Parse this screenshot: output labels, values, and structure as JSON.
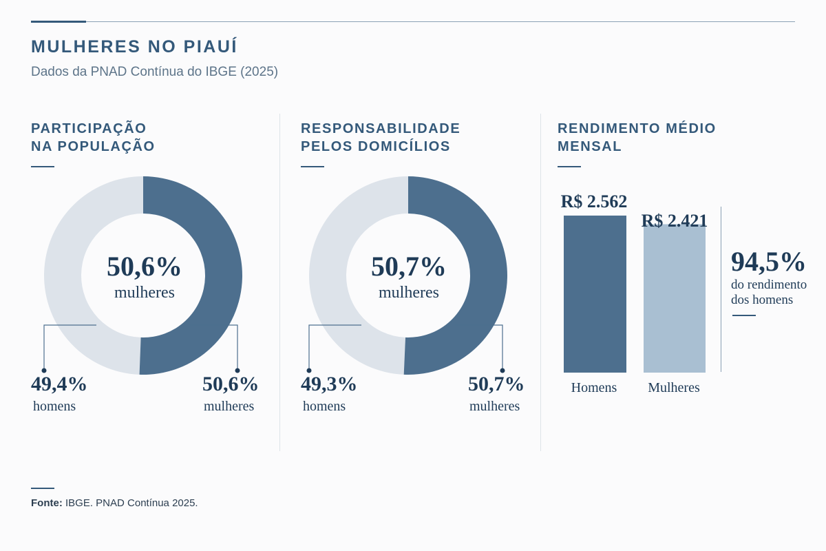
{
  "header": {
    "title": "MULHERES NO PIAUÍ",
    "subtitle": "Dados da PNAD Contínua do IBGE (2025)"
  },
  "colors": {
    "dark": "#4d6f8e",
    "light": "#dde3ea",
    "bar_light": "#a9bfd2",
    "text": "#1f3b57"
  },
  "panels": {
    "population": {
      "title_line1": "PARTICIPAÇÃO",
      "title_line2": "NA POPULAÇÃO",
      "center_pct": "50,6%",
      "center_label": "mulheres",
      "left_pct": "49,4%",
      "left_label": "homens",
      "right_pct": "50,6%",
      "right_label": "mulheres"
    },
    "households": {
      "title_line1": "RESPONSABILIDADE",
      "title_line2": "PELOS DOMICÍLIOS",
      "center_pct": "50,7%",
      "center_label": "mulheres",
      "left_pct": "49,3%",
      "left_label": "homens",
      "right_pct": "50,7%",
      "right_label": "mulheres"
    },
    "income": {
      "title_line1": "RENDIMENTO MÉDIO",
      "title_line2": "MENSAL",
      "men_value": "R$ 2.562",
      "women_value": "R$ 2.421",
      "men_label": "Homens",
      "women_label": "Mulheres",
      "ratio_pct": "94,5%",
      "ratio_label_line1": "do rendimento",
      "ratio_label_line2": "dos homens"
    }
  },
  "source": {
    "label": "Fonte:",
    "text": " IBGE. PNAD Contínua 2025."
  },
  "chart_data": [
    {
      "type": "pie",
      "title": "PARTICIPAÇÃO NA POPULAÇÃO",
      "categories": [
        "homens",
        "mulheres"
      ],
      "values": [
        49.4,
        50.6
      ]
    },
    {
      "type": "pie",
      "title": "RESPONSABILIDADE PELOS DOMICÍLIOS",
      "categories": [
        "homens",
        "mulheres"
      ],
      "values": [
        49.3,
        50.7
      ]
    },
    {
      "type": "bar",
      "title": "RENDIMENTO MÉDIO MENSAL",
      "categories": [
        "Homens",
        "Mulheres"
      ],
      "values": [
        2562,
        2421
      ]
    }
  ]
}
